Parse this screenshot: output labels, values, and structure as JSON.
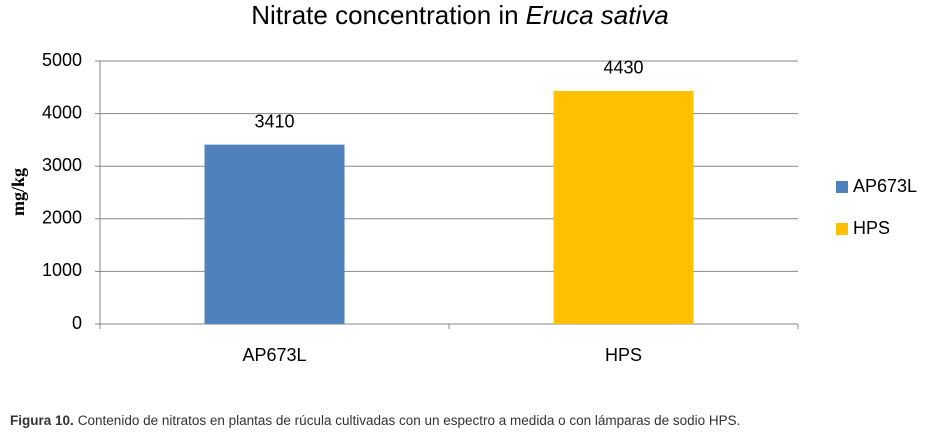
{
  "chart_data": {
    "type": "bar",
    "title": [
      "Nitrate concentration in",
      "Eruca sativa"
    ],
    "y_label": "mg/kg",
    "categories": [
      "AP673L",
      "HPS"
    ],
    "series": [
      {
        "name": "AP673L",
        "color": "#4f81bd",
        "values": [
          3410,
          null
        ]
      },
      {
        "name": "HPS",
        "color": "#ffc000",
        "values": [
          null,
          4430
        ]
      }
    ],
    "ylim": [
      0,
      5000
    ],
    "yticks": [
      0,
      1000,
      2000,
      3000,
      4000,
      5000
    ],
    "grid": true,
    "legend": "right"
  },
  "caption": {
    "label": "Figura 10.",
    "text": "Contenido de nitratos en plantas de rúcula cultivadas con un espectro a medida o con lámparas de sodio HPS."
  }
}
